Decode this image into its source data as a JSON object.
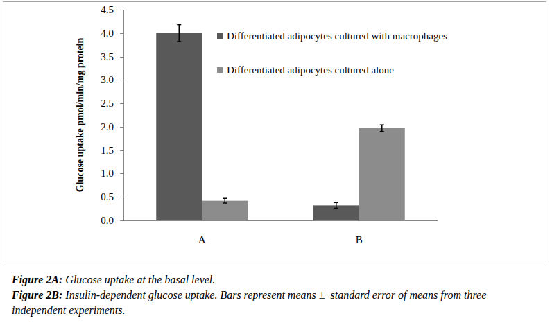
{
  "chart_data": {
    "type": "bar",
    "y_label": "Glucose uptake pmol/min/mg protein",
    "categories": [
      "A",
      "B"
    ],
    "series": [
      {
        "name": "Differentiated adipocytes cultured with macrophages",
        "color": "#595959",
        "values": [
          4.0,
          0.32
        ],
        "errors": [
          0.18,
          0.06
        ]
      },
      {
        "name": "Differentiated adipocytes cultured alone",
        "color": "#8c8c8c",
        "values": [
          0.42,
          1.97
        ],
        "errors": [
          0.05,
          0.07
        ]
      }
    ],
    "ylim": [
      0,
      4.5
    ],
    "yticks": [
      {
        "value": 0,
        "label": "0.0"
      },
      {
        "value": 0.5,
        "label": "0.5"
      },
      {
        "value": 1,
        "label": "1.0"
      },
      {
        "value": 1.5,
        "label": "1.5"
      },
      {
        "value": 2,
        "label": "2.0"
      },
      {
        "value": 2.5,
        "label": "2.5"
      },
      {
        "value": 3,
        "label": "3.0"
      },
      {
        "value": 3.5,
        "label": "3.5"
      },
      {
        "value": 4,
        "label": "4.0"
      },
      {
        "value": 4.5,
        "label": "4.5"
      }
    ],
    "grid": false,
    "legend": "top"
  },
  "captions": [
    {
      "label": "Figure 2A:",
      "text": " Glucose uptake at the basal level."
    },
    {
      "label": "Figure 2B:",
      "text": " Insulin-dependent glucose uptake. Bars represent means ±  standard error of means from three    independent experiments."
    }
  ]
}
